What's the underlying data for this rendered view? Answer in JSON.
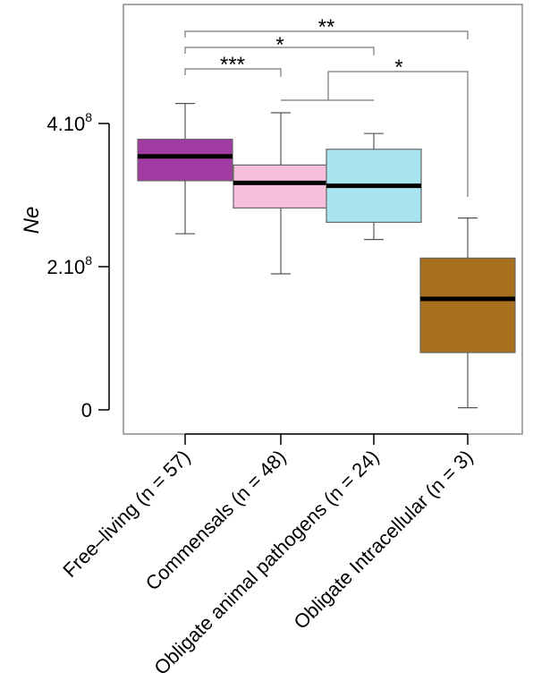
{
  "chart_data": {
    "type": "box",
    "ylabel": "Ne",
    "ylim": [
      0,
      580000000
    ],
    "y_ticks": [
      {
        "value": 0,
        "base": "0",
        "exp": ""
      },
      {
        "value": 200000000,
        "base": "2.10",
        "exp": "8"
      },
      {
        "value": 400000000,
        "base": "4.10",
        "exp": "8"
      }
    ],
    "categories": [
      "Free–living (n = 57)",
      "Commensals (n = 48)",
      "Obligate animal pathogens (n = 24)",
      "Obligate Intracellular (n = 3)"
    ],
    "boxes": [
      {
        "whisker_low": 246000000,
        "q1": 320000000,
        "median": 354000000,
        "q3": 378000000,
        "whisker_high": 428000000,
        "color": "#A33BA4"
      },
      {
        "whisker_low": 190000000,
        "q1": 282000000,
        "median": 317000000,
        "q3": 342000000,
        "whisker_high": 415000000,
        "color": "#F7BFDB"
      },
      {
        "whisker_low": 238000000,
        "q1": 262000000,
        "median": 313000000,
        "q3": 364000000,
        "whisker_high": 386000000,
        "color": "#A9E5F1"
      },
      {
        "whisker_low": 3000000,
        "q1": 80000000,
        "median": 155000000,
        "q3": 212000000,
        "whisker_high": 268000000,
        "color": "#A6701E"
      }
    ],
    "significance": [
      {
        "label": "***"
      },
      {
        "label": "*"
      },
      {
        "label": "**"
      },
      {
        "label": "*"
      }
    ]
  }
}
